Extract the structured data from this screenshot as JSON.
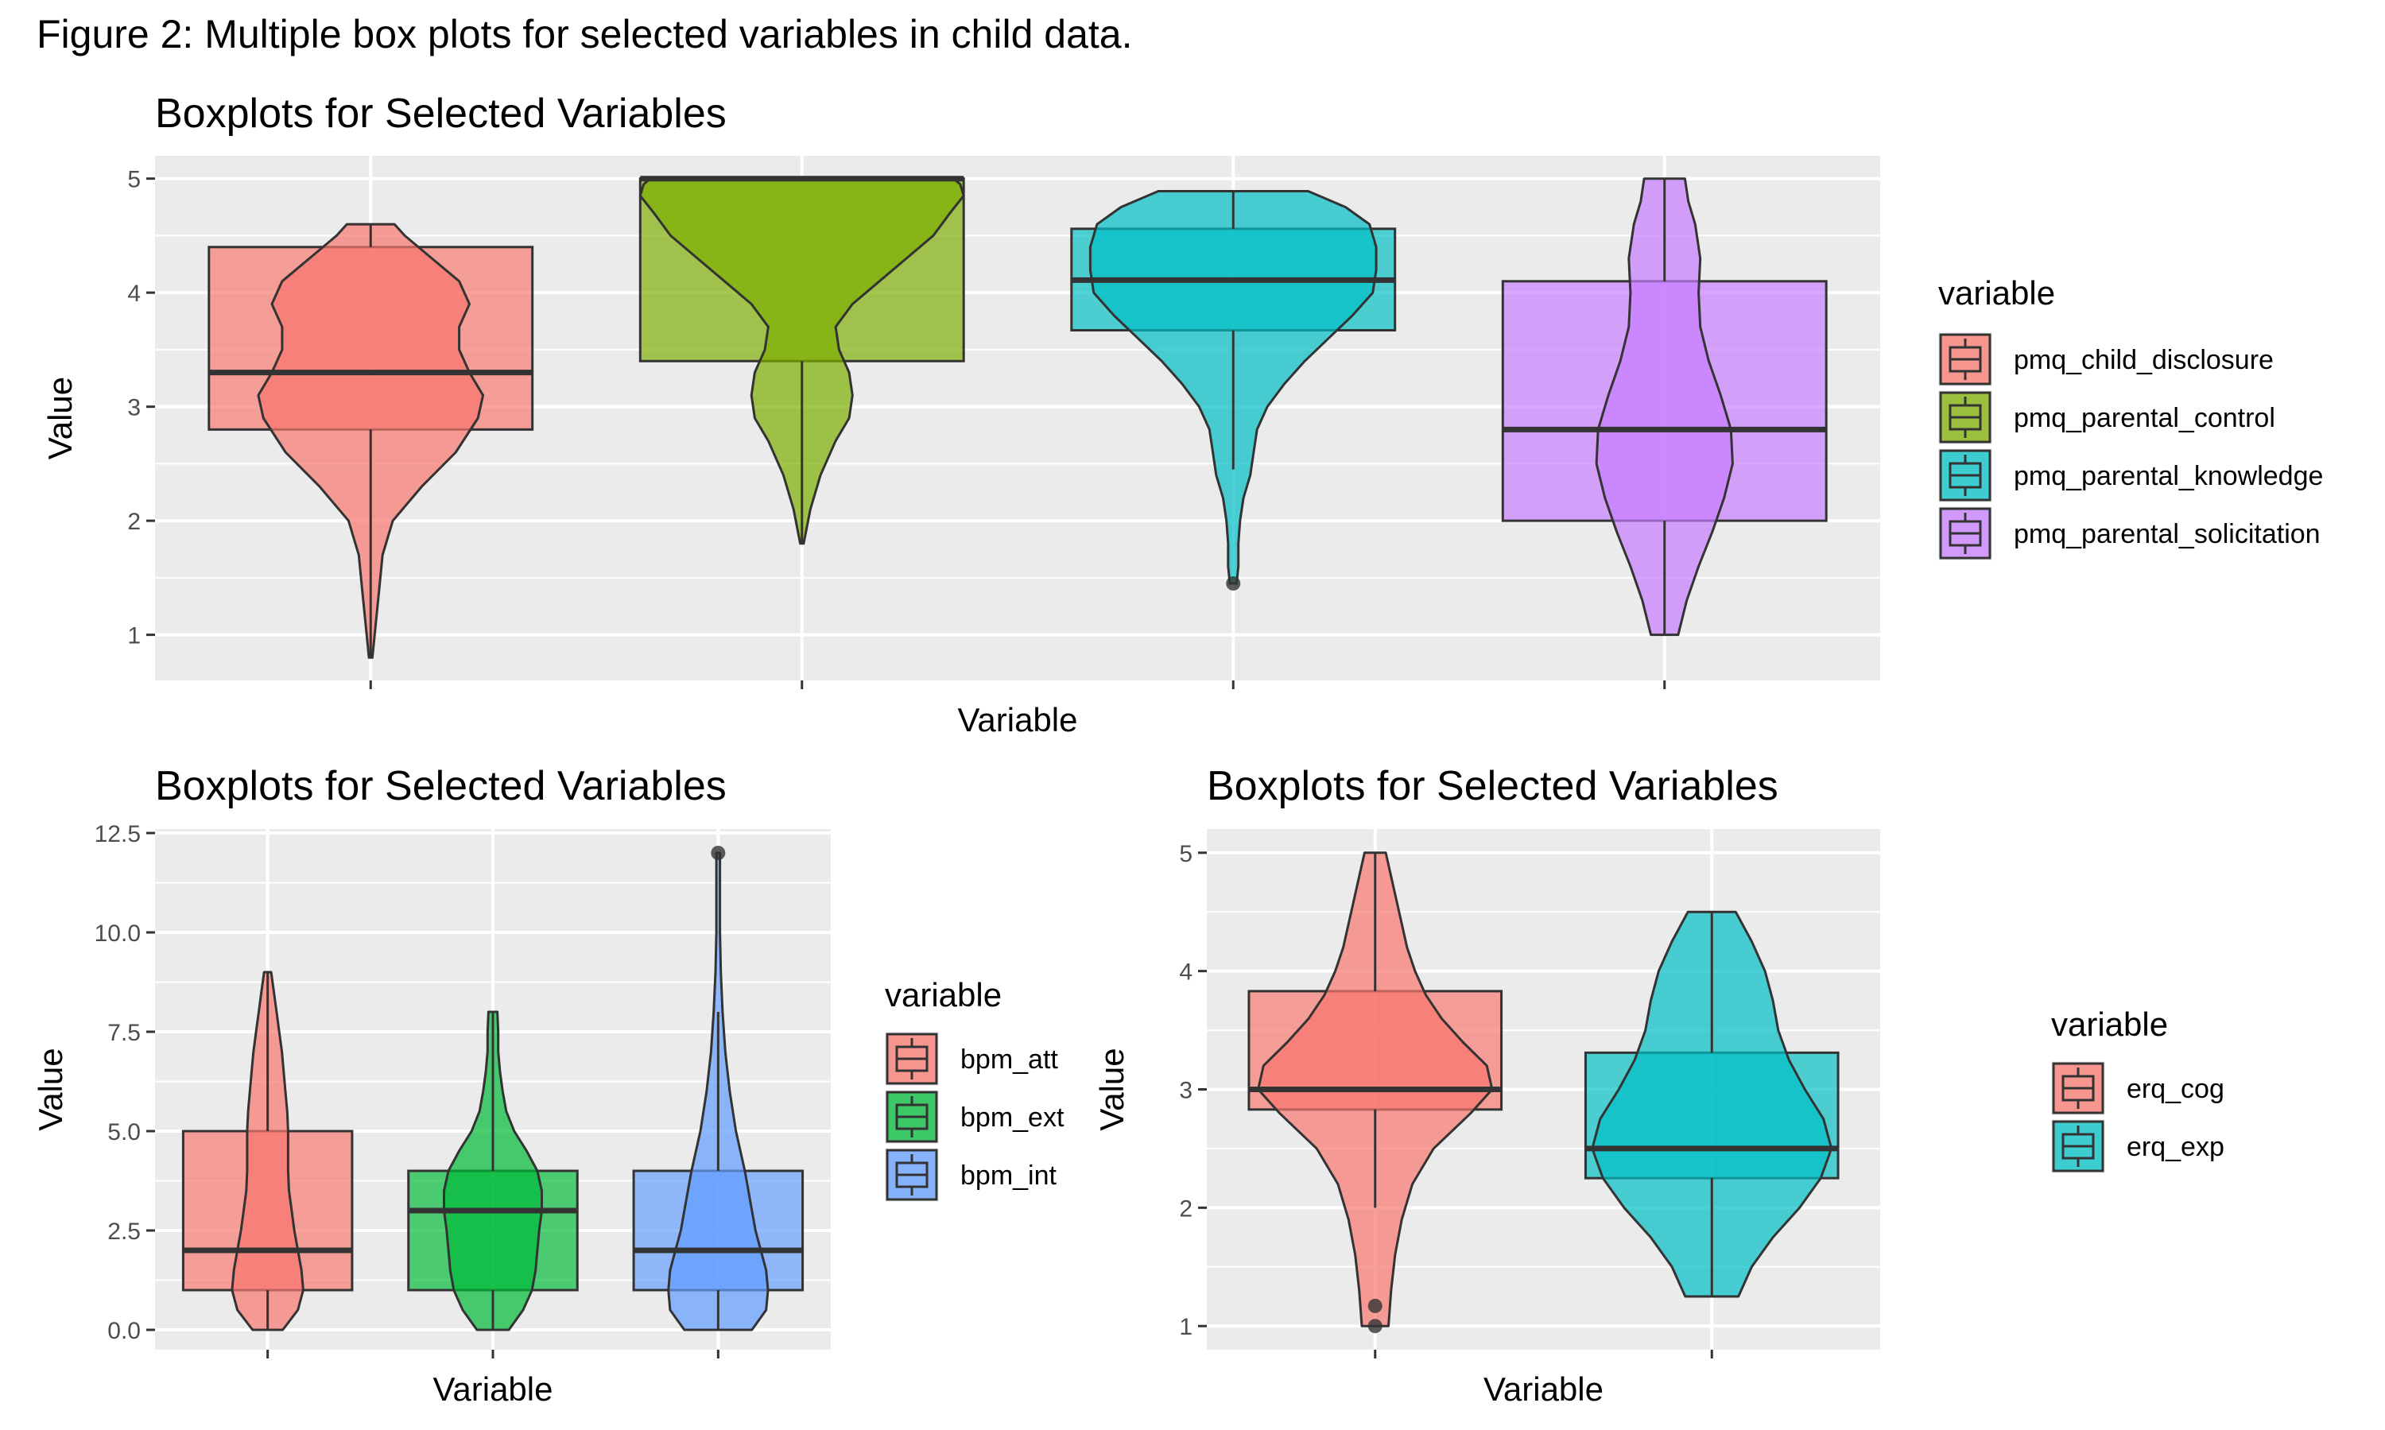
{
  "caption": "Figure 2: Multiple box plots for selected variables in child data.",
  "chart_data": [
    {
      "type": "box",
      "overlay": "violin",
      "title": "Boxplots for Selected Variables",
      "xlabel": "Variable",
      "ylabel": "Value",
      "ylim": [
        0.6,
        5.2
      ],
      "yticks": [
        1,
        2,
        3,
        4,
        5
      ],
      "ytick_labels": [
        "1",
        "2",
        "3",
        "4",
        "5"
      ],
      "grid": true,
      "legend": {
        "title": "variable",
        "position": "right"
      },
      "series": [
        {
          "name": "pmq_child_disclosure",
          "color": "#F8766D",
          "min": 0.8,
          "q1": 2.8,
          "median": 3.3,
          "q3": 4.4,
          "max": 4.6,
          "whisker_low": 0.8,
          "whisker_high": 4.6,
          "outliers": [],
          "violin": [
            [
              0.8,
              0.01
            ],
            [
              1.1,
              0.03
            ],
            [
              1.4,
              0.05
            ],
            [
              1.7,
              0.07
            ],
            [
              2.0,
              0.13
            ],
            [
              2.3,
              0.3
            ],
            [
              2.6,
              0.5
            ],
            [
              2.9,
              0.63
            ],
            [
              3.1,
              0.66
            ],
            [
              3.3,
              0.58
            ],
            [
              3.5,
              0.52
            ],
            [
              3.7,
              0.52
            ],
            [
              3.9,
              0.58
            ],
            [
              4.1,
              0.52
            ],
            [
              4.3,
              0.36
            ],
            [
              4.5,
              0.2
            ],
            [
              4.6,
              0.14
            ]
          ]
        },
        {
          "name": "pmq_parental_control",
          "color": "#7CAE00",
          "min": 1.8,
          "q1": 3.4,
          "median": 5.0,
          "q3": 5.0,
          "max": 5.0,
          "whisker_low": 1.8,
          "whisker_high": 5.0,
          "outliers": [],
          "violin": [
            [
              1.8,
              0.01
            ],
            [
              2.1,
              0.05
            ],
            [
              2.4,
              0.11
            ],
            [
              2.7,
              0.2
            ],
            [
              2.9,
              0.28
            ],
            [
              3.1,
              0.3
            ],
            [
              3.3,
              0.28
            ],
            [
              3.5,
              0.22
            ],
            [
              3.7,
              0.2
            ],
            [
              3.9,
              0.3
            ],
            [
              4.1,
              0.46
            ],
            [
              4.3,
              0.62
            ],
            [
              4.5,
              0.78
            ],
            [
              4.7,
              0.88
            ],
            [
              4.85,
              0.96
            ],
            [
              4.95,
              0.94
            ],
            [
              5.0,
              0.9
            ]
          ]
        },
        {
          "name": "pmq_parental_knowledge",
          "color": "#00BFC4",
          "min": 1.45,
          "q1": 3.67,
          "median": 4.11,
          "q3": 4.56,
          "max": 4.89,
          "whisker_low": 2.45,
          "whisker_high": 4.89,
          "outliers": [
            1.45
          ],
          "violin": [
            [
              1.45,
              0.02
            ],
            [
              1.6,
              0.03
            ],
            [
              1.8,
              0.03
            ],
            [
              2.0,
              0.04
            ],
            [
              2.2,
              0.06
            ],
            [
              2.4,
              0.1
            ],
            [
              2.6,
              0.12
            ],
            [
              2.8,
              0.14
            ],
            [
              3.0,
              0.2
            ],
            [
              3.2,
              0.3
            ],
            [
              3.4,
              0.42
            ],
            [
              3.6,
              0.56
            ],
            [
              3.8,
              0.7
            ],
            [
              4.0,
              0.82
            ],
            [
              4.2,
              0.84
            ],
            [
              4.4,
              0.84
            ],
            [
              4.6,
              0.8
            ],
            [
              4.75,
              0.66
            ],
            [
              4.89,
              0.44
            ]
          ]
        },
        {
          "name": "pmq_parental_solicitation",
          "color": "#C77CFF",
          "min": 1.0,
          "q1": 2.0,
          "median": 2.8,
          "q3": 4.1,
          "max": 5.0,
          "whisker_low": 1.0,
          "whisker_high": 5.0,
          "outliers": [],
          "violin": [
            [
              1.0,
              0.08
            ],
            [
              1.3,
              0.13
            ],
            [
              1.6,
              0.2
            ],
            [
              1.9,
              0.28
            ],
            [
              2.2,
              0.35
            ],
            [
              2.5,
              0.4
            ],
            [
              2.8,
              0.39
            ],
            [
              3.1,
              0.33
            ],
            [
              3.4,
              0.26
            ],
            [
              3.7,
              0.21
            ],
            [
              4.0,
              0.2
            ],
            [
              4.3,
              0.21
            ],
            [
              4.6,
              0.18
            ],
            [
              4.8,
              0.14
            ],
            [
              5.0,
              0.12
            ]
          ]
        }
      ]
    },
    {
      "type": "box",
      "overlay": "violin",
      "title": "Boxplots for Selected Variables",
      "xlabel": "Variable",
      "ylabel": "Value",
      "ylim": [
        -0.5,
        12.6
      ],
      "yticks": [
        0,
        2.5,
        5,
        7.5,
        10,
        12.5
      ],
      "ytick_labels": [
        "0.0",
        "2.5",
        "5.0",
        "7.5",
        "10.0",
        "12.5"
      ],
      "grid": true,
      "legend": {
        "title": "variable",
        "position": "right"
      },
      "series": [
        {
          "name": "bpm_att",
          "color": "#F8766D",
          "min": 0,
          "q1": 1,
          "median": 2,
          "q3": 5,
          "max": 9,
          "whisker_low": 0,
          "whisker_high": 9,
          "outliers": [],
          "violin": [
            [
              0,
              0.17
            ],
            [
              0.5,
              0.34
            ],
            [
              1.0,
              0.4
            ],
            [
              1.5,
              0.38
            ],
            [
              2.0,
              0.34
            ],
            [
              2.5,
              0.3
            ],
            [
              3.0,
              0.27
            ],
            [
              3.5,
              0.24
            ],
            [
              4.0,
              0.23
            ],
            [
              4.5,
              0.23
            ],
            [
              5.0,
              0.23
            ],
            [
              5.5,
              0.22
            ],
            [
              6.0,
              0.2
            ],
            [
              6.5,
              0.18
            ],
            [
              7.0,
              0.16
            ],
            [
              7.5,
              0.13
            ],
            [
              8.0,
              0.1
            ],
            [
              8.5,
              0.07
            ],
            [
              9.0,
              0.04
            ]
          ]
        },
        {
          "name": "bpm_ext",
          "color": "#00BA38",
          "min": 0,
          "q1": 1,
          "median": 3,
          "q3": 4,
          "max": 8,
          "whisker_low": 0,
          "whisker_high": 8,
          "outliers": [],
          "violin": [
            [
              0,
              0.18
            ],
            [
              0.5,
              0.34
            ],
            [
              1.0,
              0.44
            ],
            [
              1.5,
              0.48
            ],
            [
              2.0,
              0.5
            ],
            [
              2.5,
              0.52
            ],
            [
              3.0,
              0.55
            ],
            [
              3.5,
              0.55
            ],
            [
              4.0,
              0.5
            ],
            [
              4.5,
              0.38
            ],
            [
              5.0,
              0.24
            ],
            [
              5.5,
              0.15
            ],
            [
              6.0,
              0.11
            ],
            [
              6.5,
              0.08
            ],
            [
              7.0,
              0.06
            ],
            [
              7.5,
              0.06
            ],
            [
              8.0,
              0.05
            ]
          ]
        },
        {
          "name": "bpm_int",
          "color": "#619CFF",
          "min": 0,
          "q1": 1,
          "median": 2,
          "q3": 4,
          "max": 12,
          "whisker_low": 0,
          "whisker_high": 8,
          "outliers": [
            12
          ],
          "violin": [
            [
              0,
              0.38
            ],
            [
              0.5,
              0.54
            ],
            [
              1.0,
              0.56
            ],
            [
              1.5,
              0.54
            ],
            [
              2.0,
              0.48
            ],
            [
              2.5,
              0.42
            ],
            [
              3.0,
              0.38
            ],
            [
              3.5,
              0.34
            ],
            [
              4.0,
              0.3
            ],
            [
              4.5,
              0.25
            ],
            [
              5.0,
              0.2
            ],
            [
              6.0,
              0.13
            ],
            [
              7.0,
              0.08
            ],
            [
              8.0,
              0.05
            ],
            [
              9.0,
              0.03
            ],
            [
              10.0,
              0.02
            ],
            [
              11.0,
              0.02
            ],
            [
              12.0,
              0.02
            ]
          ]
        }
      ]
    },
    {
      "type": "box",
      "overlay": "violin",
      "title": "Boxplots for Selected Variables",
      "xlabel": "Variable",
      "ylabel": "Value",
      "ylim": [
        0.8,
        5.2
      ],
      "yticks": [
        1,
        2,
        3,
        4,
        5
      ],
      "ytick_labels": [
        "1",
        "2",
        "3",
        "4",
        "5"
      ],
      "grid": true,
      "legend": {
        "title": "variable",
        "position": "right"
      },
      "series": [
        {
          "name": "erq_cog",
          "color": "#F8766D",
          "min": 1.0,
          "q1": 2.83,
          "median": 3.0,
          "q3": 3.83,
          "max": 5.0,
          "whisker_low": 2.0,
          "whisker_high": 5.0,
          "outliers": [
            1.0,
            1.17
          ],
          "violin": [
            [
              1.0,
              0.1
            ],
            [
              1.3,
              0.12
            ],
            [
              1.6,
              0.15
            ],
            [
              1.9,
              0.2
            ],
            [
              2.2,
              0.28
            ],
            [
              2.5,
              0.44
            ],
            [
              2.8,
              0.72
            ],
            [
              3.0,
              0.88
            ],
            [
              3.2,
              0.84
            ],
            [
              3.4,
              0.66
            ],
            [
              3.6,
              0.5
            ],
            [
              3.8,
              0.38
            ],
            [
              4.0,
              0.3
            ],
            [
              4.2,
              0.24
            ],
            [
              4.4,
              0.2
            ],
            [
              4.6,
              0.16
            ],
            [
              4.8,
              0.12
            ],
            [
              5.0,
              0.08
            ]
          ]
        },
        {
          "name": "erq_exp",
          "color": "#00BFC4",
          "min": 1.25,
          "q1": 2.25,
          "median": 2.5,
          "q3": 3.31,
          "max": 4.5,
          "whisker_low": 1.25,
          "whisker_high": 4.5,
          "outliers": [],
          "violin": [
            [
              1.25,
              0.2
            ],
            [
              1.5,
              0.3
            ],
            [
              1.75,
              0.46
            ],
            [
              2.0,
              0.66
            ],
            [
              2.25,
              0.82
            ],
            [
              2.5,
              0.9
            ],
            [
              2.75,
              0.84
            ],
            [
              3.0,
              0.7
            ],
            [
              3.25,
              0.58
            ],
            [
              3.5,
              0.5
            ],
            [
              3.75,
              0.46
            ],
            [
              4.0,
              0.4
            ],
            [
              4.25,
              0.3
            ],
            [
              4.5,
              0.18
            ]
          ]
        }
      ]
    }
  ]
}
